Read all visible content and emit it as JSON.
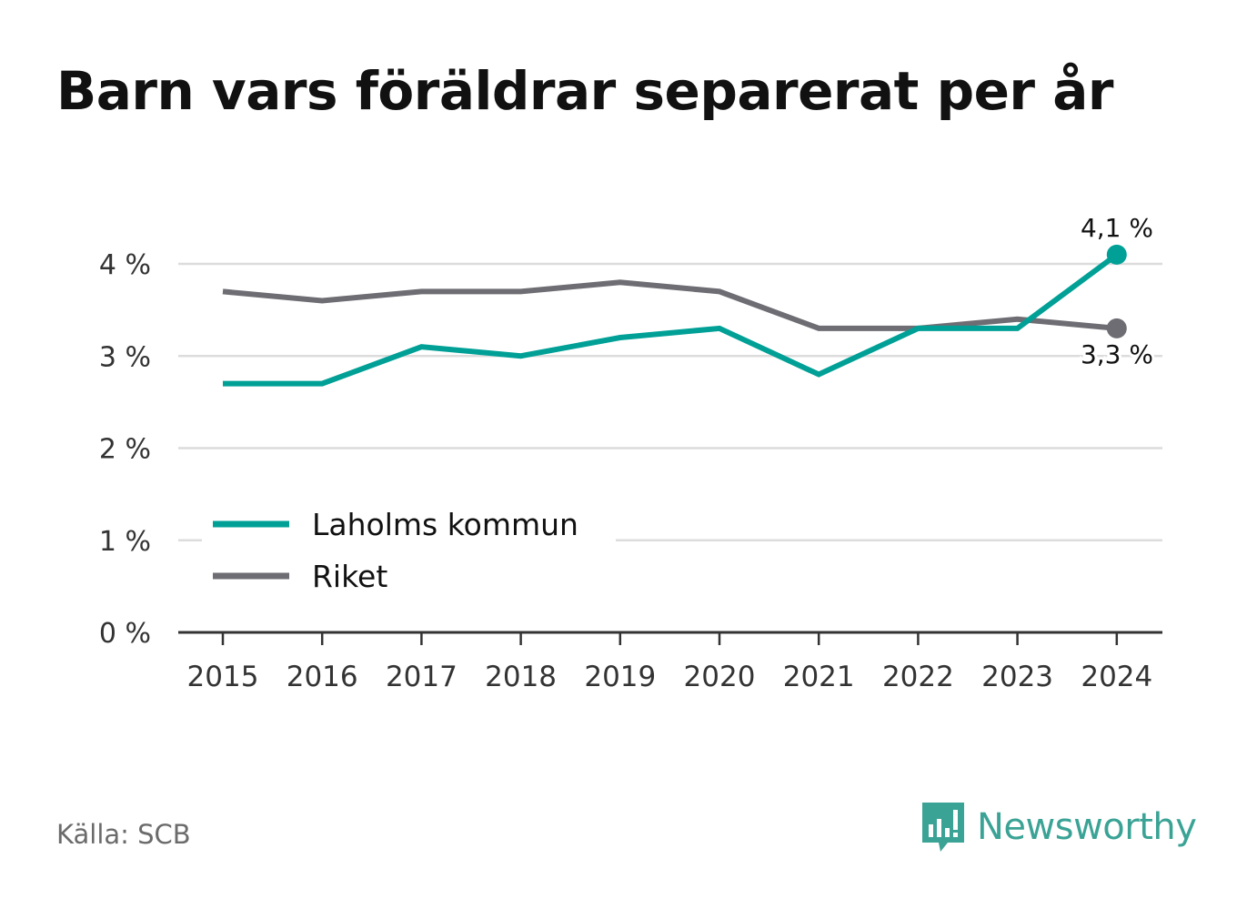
{
  "title": "Barn vars föräldrar separerat per år",
  "source": "Källa: SCB",
  "brand": {
    "name": "Newsworthy",
    "icon": "newsworthy-logo-icon",
    "color": "#3aa395"
  },
  "chart_data": {
    "type": "line",
    "x": [
      "2015",
      "2016",
      "2017",
      "2018",
      "2019",
      "2020",
      "2021",
      "2022",
      "2023",
      "2024"
    ],
    "series": [
      {
        "name": "Laholms kommun",
        "color": "#00a096",
        "values": [
          2.7,
          2.7,
          3.1,
          3.0,
          3.2,
          3.3,
          2.8,
          3.3,
          3.3,
          4.1
        ],
        "end_label": "4,1 %"
      },
      {
        "name": "Riket",
        "color": "#6e6d73",
        "values": [
          3.7,
          3.6,
          3.7,
          3.7,
          3.8,
          3.7,
          3.3,
          3.3,
          3.4,
          3.3
        ],
        "end_label": "3,3 %"
      }
    ],
    "ylim": [
      0,
      4
    ],
    "yticks": [
      0,
      1,
      2,
      3,
      4
    ],
    "ytick_labels": [
      "0 %",
      "1 %",
      "2 %",
      "3 %",
      "4 %"
    ],
    "grid": true,
    "legend": "bottom-left"
  }
}
